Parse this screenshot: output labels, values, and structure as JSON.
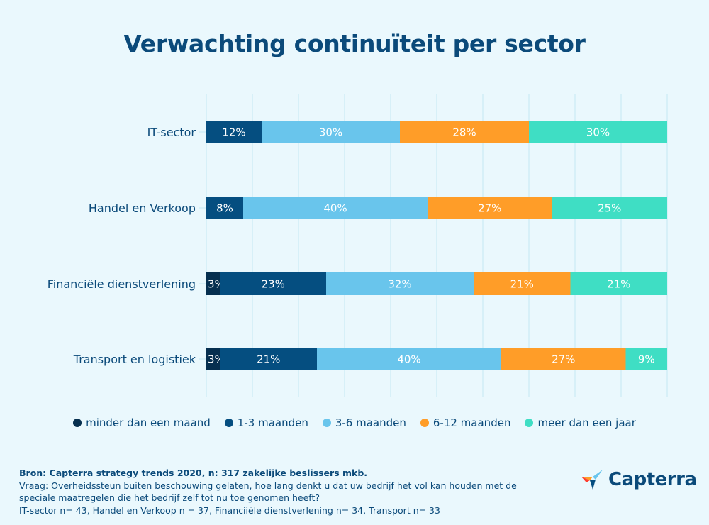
{
  "chart_data": {
    "type": "bar",
    "orientation": "horizontal",
    "stacked": true,
    "title": "Verwachting continuïteit per sector",
    "categories": [
      "IT-sector",
      "Handel en Verkoop",
      "Financiële dienstverlening",
      "Transport en logistiek"
    ],
    "series": [
      {
        "name": "minder dan een maand",
        "color": "#062f4f",
        "values": [
          0,
          0,
          3,
          3
        ]
      },
      {
        "name": "1-3 maanden",
        "color": "#054e80",
        "values": [
          12,
          8,
          23,
          21
        ]
      },
      {
        "name": "3-6 maanden",
        "color": "#69c5ec",
        "values": [
          30,
          40,
          32,
          40
        ]
      },
      {
        "name": "6-12 maanden",
        "color": "#ff9d28",
        "values": [
          28,
          27,
          21,
          27
        ]
      },
      {
        "name": "meer dan een jaar",
        "color": "#3fdec4",
        "values": [
          30,
          25,
          21,
          9
        ]
      }
    ],
    "xlim": [
      0,
      100
    ],
    "grid": true,
    "grid_step": 10,
    "value_suffix": "%",
    "legend_position": "bottom",
    "xlabel": "",
    "ylabel": ""
  },
  "footer": {
    "source": "Bron: Capterra strategy trends 2020, n: 317 zakelijke beslissers mkb.",
    "question": "Vraag: Overheidssteun buiten beschouwing gelaten, hoe lang denkt u dat uw bedrijf het vol kan houden met de speciale maatregelen die het bedrijf zelf tot nu toe genomen heeft?",
    "samples": "IT-sector n= 43, Handel en Verkoop n = 37, Financiiële dienstverlening n= 34, Transport n= 33"
  },
  "logo": {
    "text": "Capterra",
    "icon": "capterra-arrow-icon"
  }
}
